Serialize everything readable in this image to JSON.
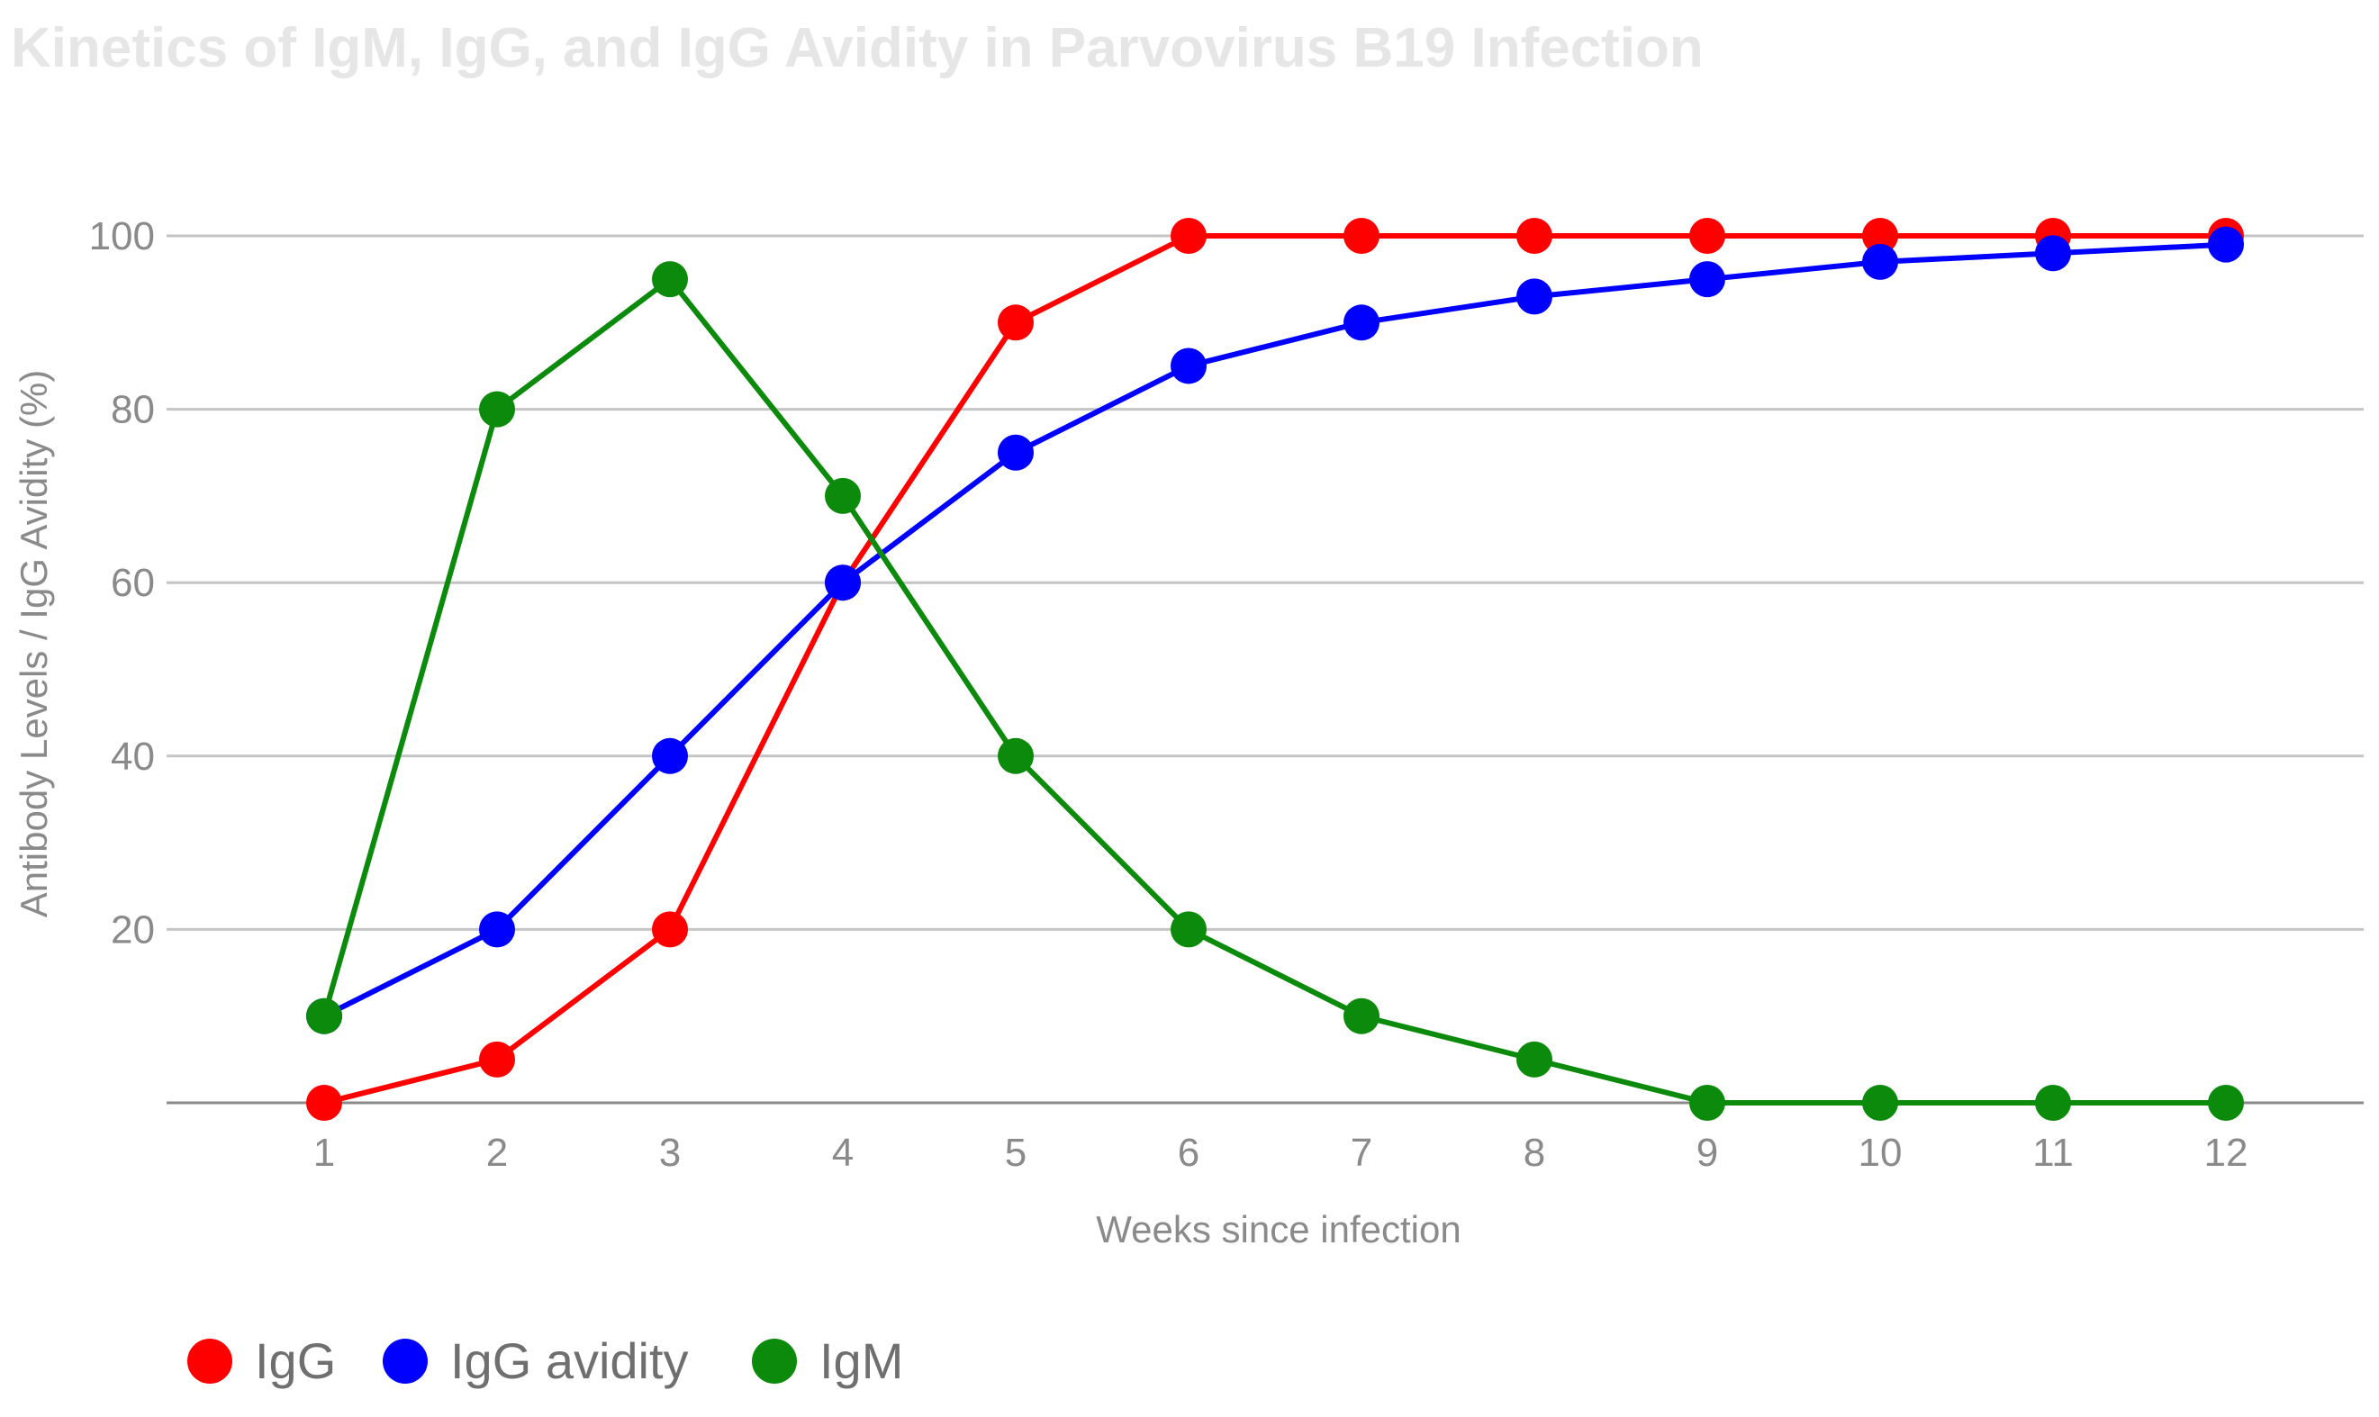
{
  "chart_data": {
    "type": "line",
    "title": "Kinetics of IgM, IgG, and IgG Avidity in Parvovirus B19 Infection",
    "xlabel": "Weeks since infection",
    "ylabel": "Antibody Levels / IgG Avidity (%)",
    "ylim": [
      0,
      100
    ],
    "y_ticks": [
      20,
      40,
      60,
      80,
      100
    ],
    "y_tick_labels": [
      "20",
      "40",
      "60",
      "80",
      "100"
    ],
    "grid": true,
    "legend_position": "bottom-left",
    "categories": [
      "1",
      "2",
      "3",
      "4",
      "5",
      "6",
      "7",
      "8",
      "9",
      "10",
      "11",
      "12"
    ],
    "series": [
      {
        "name": "IgG",
        "color": "#ff0000",
        "values": [
          0,
          5,
          20,
          60,
          90,
          100,
          100,
          100,
          100,
          100,
          100,
          100
        ]
      },
      {
        "name": "IgG avidity",
        "color": "#0000ff",
        "values": [
          10,
          20,
          40,
          60,
          75,
          85,
          90,
          93,
          95,
          97,
          98,
          99
        ]
      },
      {
        "name": "IgM",
        "color": "#0b8a0b",
        "values": [
          10,
          80,
          95,
          70,
          40,
          20,
          10,
          5,
          0,
          0,
          0,
          0
        ]
      }
    ]
  }
}
